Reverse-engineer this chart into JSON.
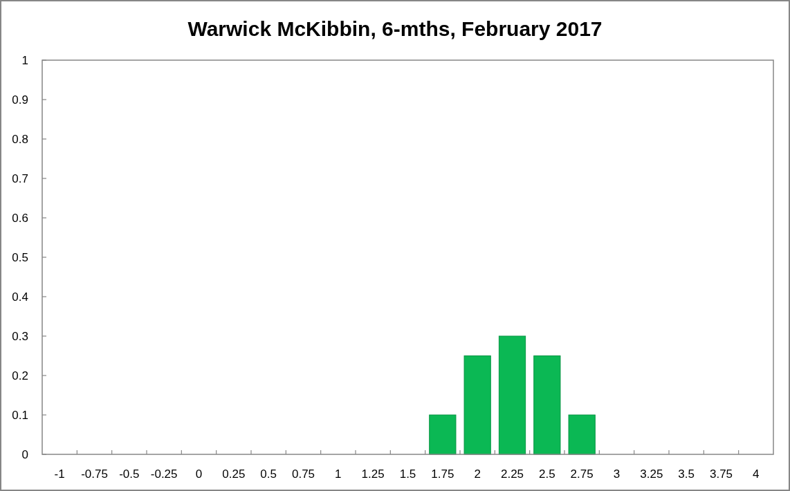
{
  "chart_data": {
    "type": "bar",
    "title": "Warwick McKibbin, 6-mths, February 2017",
    "categories": [
      "-1",
      "-0.75",
      "-0.5",
      "-0.25",
      "0",
      "0.25",
      "0.5",
      "0.75",
      "1",
      "1.25",
      "1.5",
      "1.75",
      "2",
      "2.25",
      "2.5",
      "2.75",
      "3",
      "3.25",
      "3.5",
      "3.75",
      "4"
    ],
    "values": [
      0,
      0,
      0,
      0,
      0,
      0,
      0,
      0,
      0,
      0,
      0,
      0.1,
      0.25,
      0.3,
      0.25,
      0.1,
      0,
      0,
      0,
      0,
      0
    ],
    "color": "#0bb854",
    "ylim": [
      0,
      1
    ],
    "yticks": [
      0,
      0.1,
      0.2,
      0.3,
      0.4,
      0.5,
      0.6,
      0.7,
      0.8,
      0.9,
      1
    ],
    "grid": false
  }
}
